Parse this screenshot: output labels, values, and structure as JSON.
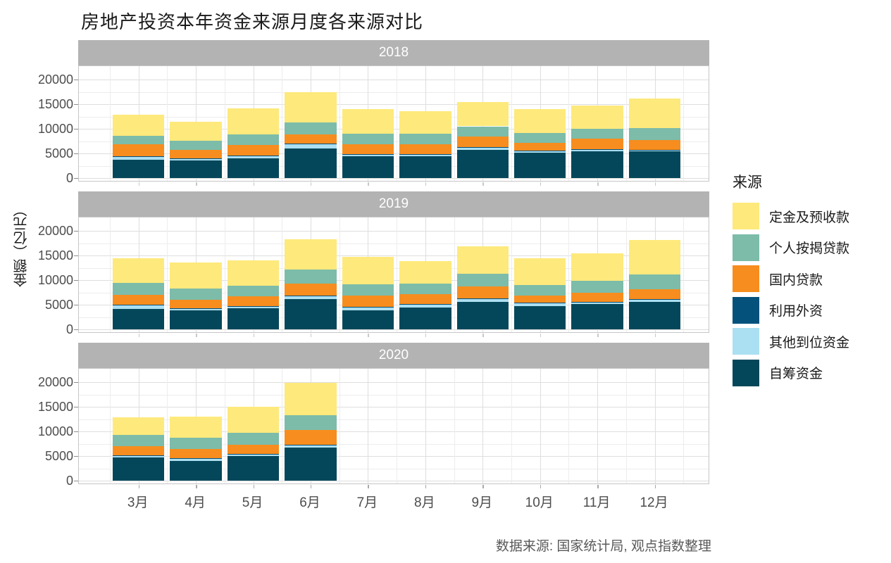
{
  "title": "房地产投资本年资金来源月度各来源对比",
  "caption": "数据来源: 国家统计局, 观点指数整理",
  "y_axis": {
    "label": "金额（亿元）",
    "ticks": [
      "0",
      "5000",
      "10000",
      "15000",
      "20000"
    ]
  },
  "legend": {
    "title": "来源",
    "items": [
      {
        "label": "定金及预收款",
        "color": "#FEE97C"
      },
      {
        "label": "个人按揭贷款",
        "color": "#7CBCA9"
      },
      {
        "label": "国内贷款",
        "color": "#F78D1E"
      },
      {
        "label": "利用外资",
        "color": "#04517C"
      },
      {
        "label": "其他到位资金",
        "color": "#ABDFF2"
      },
      {
        "label": "自筹资金",
        "color": "#05475A"
      }
    ]
  },
  "chart_data": {
    "type": "bar",
    "stacked": true,
    "title": "房地产投资本年资金来源月度各来源对比",
    "ylabel": "金额（亿元）",
    "xlabel": "",
    "ylim": [
      0,
      22500
    ],
    "yticks": [
      0,
      5000,
      10000,
      15000,
      20000
    ],
    "grid": true,
    "legend_position": "right",
    "facets": [
      "2018",
      "2019",
      "2020"
    ],
    "categories": [
      "3月",
      "4月",
      "5月",
      "6月",
      "7月",
      "8月",
      "9月",
      "10月",
      "11月",
      "12月"
    ],
    "stack_order_bottom_to_top": [
      "自筹资金",
      "其他到位资金",
      "利用外资",
      "国内贷款",
      "个人按揭贷款",
      "定金及预收款"
    ],
    "series": [
      {
        "name": "定金及预收款",
        "color": "#FEE97C",
        "values": {
          "2018": [
            4340,
            3880,
            5300,
            6050,
            5040,
            4640,
            4930,
            4840,
            4640,
            6040
          ],
          "2019": [
            4960,
            5300,
            5200,
            6170,
            5650,
            4490,
            5540,
            5450,
            5540,
            7000
          ],
          "2020": [
            3540,
            4220,
            5290,
            6550
          ]
        }
      },
      {
        "name": "个人按揭贷款",
        "color": "#7CBCA9",
        "values": {
          "2018": [
            1640,
            1920,
            2030,
            2420,
            2110,
            2030,
            2030,
            1930,
            2080,
            2420
          ],
          "2019": [
            2440,
            2250,
            2190,
            2780,
            2280,
            2190,
            2530,
            2230,
            2340,
            2920
          ],
          "2020": [
            2330,
            2420,
            2470,
            2960
          ]
        }
      },
      {
        "name": "国内贷款",
        "color": "#F78D1E",
        "values": {
          "2018": [
            2540,
            1610,
            2140,
            1940,
            2000,
            2100,
            2200,
            1670,
            2140,
            2000
          ],
          "2019": [
            2020,
            1810,
            1920,
            2490,
            2310,
            1910,
            2450,
            1430,
            1910,
            2100
          ],
          "2020": [
            1900,
            1760,
            1890,
            2970
          ]
        }
      },
      {
        "name": "利用外资",
        "color": "#04517C",
        "values": {
          "2018": [
            30,
            30,
            30,
            30,
            30,
            30,
            30,
            30,
            30,
            30
          ],
          "2019": [
            30,
            30,
            30,
            30,
            30,
            30,
            30,
            30,
            30,
            50
          ],
          "2020": [
            30,
            30,
            30,
            30
          ]
        }
      },
      {
        "name": "其他到位资金",
        "color": "#ABDFF2",
        "values": {
          "2018": [
            620,
            500,
            640,
            870,
            500,
            340,
            580,
            330,
            390,
            190
          ],
          "2019": [
            770,
            390,
            380,
            640,
            580,
            700,
            730,
            640,
            400,
            480
          ],
          "2020": [
            410,
            540,
            360,
            580
          ]
        }
      },
      {
        "name": "自筹资金",
        "color": "#05475A",
        "values": {
          "2018": [
            3730,
            3520,
            3960,
            6050,
            4390,
            4450,
            5660,
            5180,
            5370,
            5470
          ],
          "2019": [
            4190,
            3800,
            4340,
            6180,
            3900,
            4480,
            5550,
            4720,
            5150,
            5550
          ],
          "2020": [
            4650,
            4030,
            5020,
            6720
          ]
        }
      }
    ]
  },
  "colors": {
    "strip_background": "#B3B3B3",
    "strip_text": "#FFFFFF",
    "grid_major": "#DEDEDE",
    "grid_minor": "#EDEDED",
    "panel_border": "#C6C6C6",
    "axis_text": "#4D4D4D",
    "title_text": "#1A1A1A",
    "caption_text": "#595959"
  }
}
